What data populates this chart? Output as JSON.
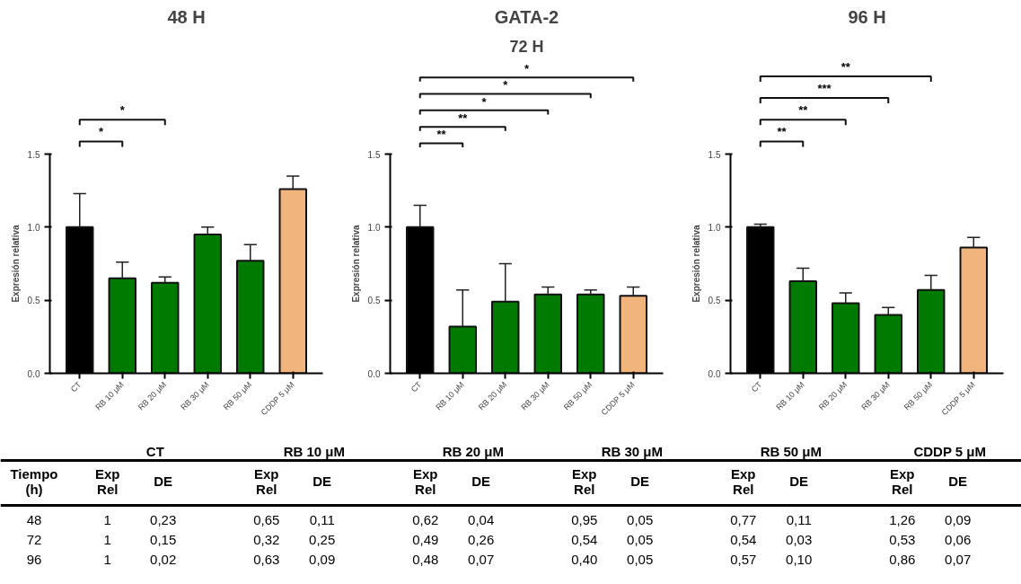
{
  "chart_data": [
    {
      "type": "bar",
      "title": "48 H",
      "ylabel": "Expresión relativa",
      "categories": [
        "CT",
        "RB 10 μM",
        "RB 20 μM",
        "RB 30 μM",
        "RB 50 μM",
        "CDDP 5 μM"
      ],
      "values": [
        1,
        0.65,
        0.62,
        0.95,
        0.77,
        1.26
      ],
      "errors": [
        0.23,
        0.11,
        0.04,
        0.05,
        0.11,
        0.09
      ],
      "colors": [
        "#000000",
        "#007a00",
        "#007a00",
        "#007a00",
        "#007a00",
        "#f0b47c"
      ],
      "ylim": [
        0,
        1.5
      ],
      "yticks": [
        {
          "value": 0,
          "label": "0.0"
        },
        {
          "value": 0.5,
          "label": "0.5"
        },
        {
          "value": 1,
          "label": "1.0"
        },
        {
          "value": 1.5,
          "label": "1.5"
        }
      ],
      "grid": false,
      "annotations": [
        "*",
        "*"
      ]
    },
    {
      "type": "bar",
      "title": "GATA-2",
      "subtitle": "72 H",
      "ylabel": "Expresión relativa",
      "categories": [
        "CT",
        "RB 10 μM",
        "RB 20 μM",
        "RB 30 μM",
        "RB 50 μM",
        "CDDP 5 μM"
      ],
      "values": [
        1,
        0.32,
        0.49,
        0.54,
        0.54,
        0.53
      ],
      "errors": [
        0.15,
        0.25,
        0.26,
        0.05,
        0.03,
        0.06
      ],
      "colors": [
        "#000000",
        "#007a00",
        "#007a00",
        "#007a00",
        "#007a00",
        "#f0b47c"
      ],
      "ylim": [
        0,
        1.5
      ],
      "yticks": [
        {
          "value": 0,
          "label": "0.0"
        },
        {
          "value": 0.5,
          "label": "0.5"
        },
        {
          "value": 1,
          "label": "1.0"
        },
        {
          "value": 1.5,
          "label": "1.5"
        }
      ],
      "grid": false,
      "annotations": [
        "**",
        "**",
        "*",
        "*",
        "*"
      ]
    },
    {
      "type": "bar",
      "title": "96 H",
      "ylabel": "Expresión relativa",
      "categories": [
        "CT",
        "RB 10 μM",
        "RB 20 μM",
        "RB 30 μM",
        "RB 50 μM",
        "CDDP 5 μM"
      ],
      "values": [
        1,
        0.63,
        0.48,
        0.4,
        0.57,
        0.86
      ],
      "errors": [
        0.02,
        0.09,
        0.07,
        0.05,
        0.1,
        0.07
      ],
      "colors": [
        "#000000",
        "#007a00",
        "#007a00",
        "#007a00",
        "#007a00",
        "#f0b47c"
      ],
      "ylim": [
        0,
        1.5
      ],
      "yticks": [
        {
          "value": 0,
          "label": "0.0"
        },
        {
          "value": 0.5,
          "label": "0.5"
        },
        {
          "value": 1,
          "label": "1.0"
        },
        {
          "value": 1.5,
          "label": "1.5"
        }
      ],
      "grid": false,
      "annotations": [
        "**",
        "**",
        "***",
        "**"
      ]
    },
    {
      "type": "other",
      "categories": [
        "CT",
        "RB 10 μM",
        "RB 20 μM",
        "RB 30 μM",
        "RB 50 μM",
        "CDDP 5 μM"
      ],
      "annotations": [
        "Tiempo (h)",
        "Exp Rel",
        "DE"
      ],
      "y_categories": [
        "48",
        "72",
        "96"
      ],
      "cell_labels": [
        [
          "1",
          "0,23",
          "0,65",
          "0,11",
          "0,62",
          "0,04",
          "0,95",
          "0,05",
          "0,77",
          "0,11",
          "1,26",
          "0,09"
        ],
        [
          "1",
          "0,15",
          "0,32",
          "0,25",
          "0,49",
          "0,26",
          "0,54",
          "0,05",
          "0,54",
          "0,03",
          "0,53",
          "0,06"
        ],
        [
          "1",
          "0,02",
          "0,63",
          "0,09",
          "0,48",
          "0,07",
          "0,40",
          "0,05",
          "0,57",
          "0,10",
          "0,86",
          "0,07"
        ]
      ]
    }
  ]
}
